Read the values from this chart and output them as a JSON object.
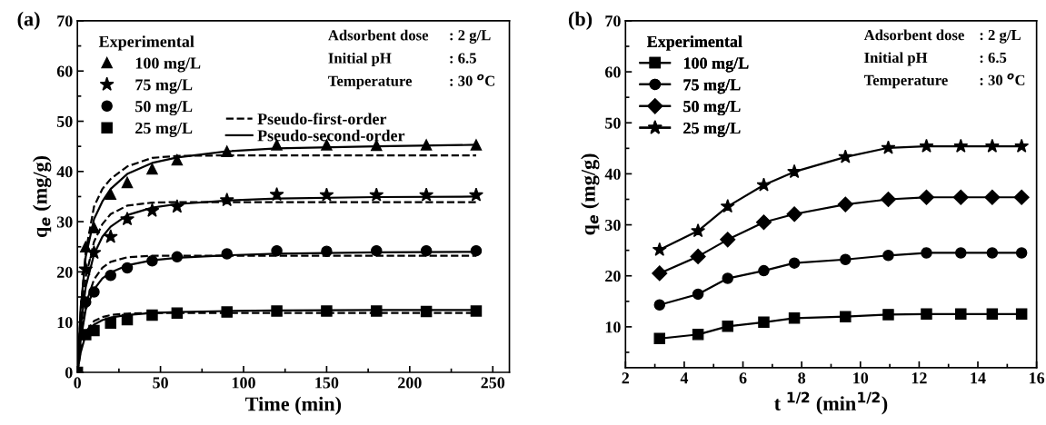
{
  "chart_data": [
    {
      "type": "scatter",
      "xlabel": "Time (min)",
      "ylabel": "q$_{e}$ (mg/g)",
      "legend_title": "Experimental",
      "legend": "top left",
      "grid": false,
      "annotations": [
        "(a)",
        "Adsorbent dose",
        ": 2 g/L",
        "Initial pH",
        ": 6.5",
        "Temperature",
        ": 30 $^{o}$C"
      ],
      "xlim": [
        0,
        260
      ],
      "xticks": [
        0,
        50,
        100,
        150,
        200,
        250
      ],
      "ylim": [
        0,
        70
      ],
      "yticks": [
        0,
        10,
        20,
        30,
        40,
        50,
        60,
        70
      ],
      "series": [
        {
          "name": "100 mg/L",
          "color": "#000000",
          "marker": "triangle",
          "x": [
            5,
            10,
            20,
            30,
            45,
            60,
            90,
            120,
            150,
            180,
            210,
            240
          ],
          "values": [
            25,
            28.8,
            35.5,
            37.8,
            40.5,
            42.3,
            44,
            45.3,
            45.3,
            45.2,
            45.3,
            45.3
          ]
        },
        {
          "name": "75 mg/L",
          "color": "#000000",
          "marker": "star",
          "x": [
            5,
            10,
            20,
            30,
            45,
            60,
            90,
            120,
            150,
            180,
            210,
            240
          ],
          "values": [
            20.5,
            23.8,
            27,
            30.5,
            32.2,
            33,
            34.3,
            35.4,
            35.3,
            35.3,
            35.3,
            35.3
          ]
        },
        {
          "name": "50 mg/L",
          "color": "#000000",
          "marker": "circle",
          "x": [
            5,
            10,
            20,
            30,
            45,
            60,
            90,
            120,
            150,
            180,
            210,
            240
          ],
          "values": [
            14,
            16,
            19.3,
            20.8,
            22.2,
            23,
            23.6,
            24.2,
            24.1,
            24.2,
            24.2,
            24.2
          ]
        },
        {
          "name": "25 mg/L",
          "color": "#000000",
          "marker": "square",
          "x": [
            0,
            5,
            10,
            20,
            30,
            45,
            60,
            90,
            120,
            150,
            180,
            210,
            240
          ],
          "values": [
            0,
            7.5,
            8.3,
            9.8,
            10.5,
            11.4,
            11.8,
            12,
            12.2,
            12.2,
            12.2,
            12.1,
            12.2
          ]
        },
        {
          "type": "line",
          "name": "Pseudo-first-order",
          "color": "#000000",
          "line_style": "dashed",
          "x": [
            0,
            2,
            5,
            10,
            15,
            20,
            30,
            45,
            60,
            90,
            240
          ],
          "values": [
            0,
            12,
            24,
            33,
            36.5,
            38.5,
            41,
            42.7,
            43.1,
            43.2,
            43.2
          ]
        },
        {
          "type": "line",
          "color": "#000000",
          "line_style": "dashed",
          "x": [
            0,
            2,
            5,
            10,
            15,
            20,
            30,
            45,
            60,
            90,
            240
          ],
          "values": [
            0,
            10,
            19,
            26,
            29.5,
            31.5,
            33.2,
            33.8,
            33.9,
            33.9,
            33.9
          ]
        },
        {
          "type": "line",
          "color": "#000000",
          "line_style": "dashed",
          "x": [
            0,
            2,
            5,
            10,
            15,
            20,
            30,
            45,
            60,
            90,
            240
          ],
          "values": [
            0,
            7,
            13.5,
            18.5,
            20.8,
            22,
            22.9,
            23.2,
            23.2,
            23.2,
            23.2
          ]
        },
        {
          "type": "line",
          "color": "#000000",
          "line_style": "dashed",
          "x": [
            0,
            2,
            5,
            10,
            15,
            20,
            30,
            45,
            60,
            90,
            240
          ],
          "values": [
            0,
            4.5,
            8,
            10.2,
            11,
            11.4,
            11.7,
            11.8,
            11.8,
            11.8,
            11.8
          ]
        },
        {
          "type": "line",
          "name": "Pseudo-second-order",
          "color": "#000000",
          "line_style": "solid",
          "x": [
            0,
            2,
            5,
            10,
            15,
            20,
            30,
            45,
            60,
            90,
            120,
            180,
            240
          ],
          "values": [
            0,
            13,
            23,
            30.5,
            34,
            36.5,
            39.5,
            41.7,
            42.8,
            44,
            44.6,
            45,
            45.3
          ]
        },
        {
          "type": "line",
          "color": "#000000",
          "line_style": "solid",
          "x": [
            0,
            2,
            5,
            10,
            15,
            20,
            30,
            45,
            60,
            90,
            120,
            180,
            240
          ],
          "values": [
            0,
            9,
            17,
            23.5,
            27,
            29,
            31.3,
            32.8,
            33.5,
            34.2,
            34.6,
            34.9,
            35
          ]
        },
        {
          "type": "line",
          "color": "#000000",
          "line_style": "solid",
          "x": [
            0,
            2,
            5,
            10,
            15,
            20,
            30,
            45,
            60,
            90,
            120,
            180,
            240
          ],
          "values": [
            0,
            6.5,
            12.5,
            16.5,
            18.7,
            19.9,
            21.3,
            22.3,
            22.8,
            23.3,
            23.6,
            23.9,
            24
          ]
        },
        {
          "type": "line",
          "color": "#000000",
          "line_style": "solid",
          "x": [
            0,
            2,
            5,
            10,
            15,
            20,
            30,
            45,
            60,
            90,
            120,
            180,
            240
          ],
          "values": [
            0,
            4,
            7.5,
            9.5,
            10.4,
            10.9,
            11.4,
            11.8,
            12,
            12.2,
            12.3,
            12.4,
            12.4
          ]
        }
      ]
    },
    {
      "type": "line",
      "xlabel": "t $^{1/2}$ (min$^{1/2}$)",
      "ylabel": "q$_{e}$ (mg/g)",
      "legend_title": "Experimental",
      "legend": "top left",
      "grid": false,
      "line_style": "solid",
      "annotations": [
        "(b)",
        "Adsorbent dose",
        ": 2 g/L",
        "Initial pH",
        ": 6.5",
        "Temperature",
        ": 30 $^{o}$C"
      ],
      "x": [
        3.16,
        4.47,
        5.48,
        6.71,
        7.75,
        9.49,
        10.95,
        12.25,
        13.42,
        14.49,
        15.49
      ],
      "xlim": [
        2,
        16
      ],
      "xticks": [
        2,
        4,
        6,
        8,
        10,
        12,
        14,
        16
      ],
      "ylim": [
        2,
        70
      ],
      "yticks": [
        10,
        20,
        30,
        40,
        50,
        60,
        70
      ],
      "series": [
        {
          "name": "100 mg/L",
          "color": "#000000",
          "marker": "square",
          "values": [
            7.7,
            8.5,
            10.1,
            10.9,
            11.7,
            12.0,
            12.4,
            12.5,
            12.5,
            12.5,
            12.5
          ]
        },
        {
          "name": "75 mg/L",
          "color": "#000000",
          "marker": "circle",
          "values": [
            14.3,
            16.4,
            19.5,
            21,
            22.5,
            23.2,
            24,
            24.5,
            24.5,
            24.5,
            24.5
          ]
        },
        {
          "name": "50 mg/L",
          "color": "#000000",
          "marker": "diamond",
          "values": [
            20.5,
            23.8,
            27.1,
            30.5,
            32.1,
            34,
            35,
            35.4,
            35.4,
            35.4,
            35.4
          ]
        },
        {
          "name": "25 mg/L",
          "color": "#000000",
          "marker": "star",
          "values": [
            25.1,
            28.8,
            33.6,
            37.8,
            40.4,
            43.3,
            45.1,
            45.4,
            45.4,
            45.4,
            45.4
          ]
        }
      ]
    }
  ]
}
